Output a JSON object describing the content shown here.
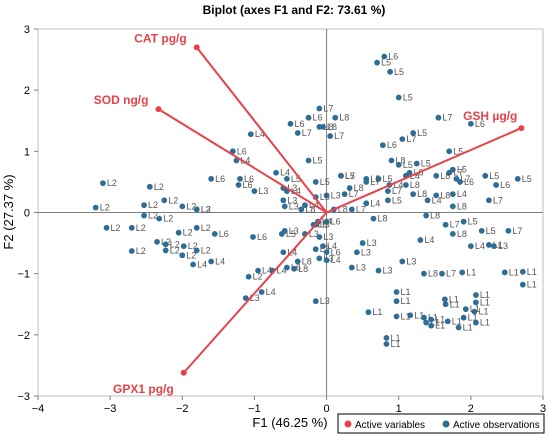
{
  "chart_data": {
    "type": "scatter",
    "title": "Biplot (axes F1 and F2: 73.61 %)",
    "xlabel": "F1 (46.25 %)",
    "ylabel": "F2 (27.37 %)",
    "xlim": [
      -4,
      3
    ],
    "ylim": [
      -3,
      3
    ],
    "xticks": [
      -4,
      -3,
      -2,
      -1,
      0,
      1,
      2,
      3
    ],
    "yticks": [
      -3,
      -2,
      -1,
      0,
      1,
      2,
      3
    ],
    "colors": {
      "variables": "#e8414a",
      "observations": "#2e6e96"
    },
    "legend": {
      "position": "bottom-right",
      "entries": [
        {
          "label": "Active variables",
          "color": "#e8414a"
        },
        {
          "label": "Active observations",
          "color": "#2e6e96"
        }
      ]
    },
    "variables": [
      {
        "name": "CAT pg/g",
        "x": -1.8,
        "y": 2.7
      },
      {
        "name": "SOD ng/g",
        "x": -2.33,
        "y": 1.69
      },
      {
        "name": "GSH µg/g",
        "x": 2.7,
        "y": 1.38
      },
      {
        "name": "GPX1 pg/g",
        "x": -1.98,
        "y": -2.62
      }
    ],
    "observations": [
      {
        "label": "L1",
        "x": 0.97,
        "y": -1.3
      },
      {
        "label": "L1",
        "x": 0.97,
        "y": -1.45
      },
      {
        "label": "L1",
        "x": 0.97,
        "y": -1.7
      },
      {
        "label": "L1",
        "x": 0.83,
        "y": -2.05
      },
      {
        "label": "L1",
        "x": 0.83,
        "y": -2.15
      },
      {
        "label": "L1",
        "x": 0.58,
        "y": -1.63
      },
      {
        "label": "L1",
        "x": 1.16,
        "y": -1.68
      },
      {
        "label": "L1",
        "x": 1.35,
        "y": -1.72
      },
      {
        "label": "L1",
        "x": 1.38,
        "y": -1.8
      },
      {
        "label": "L1",
        "x": 1.45,
        "y": -1.75
      },
      {
        "label": "L1",
        "x": 1.45,
        "y": -1.85
      },
      {
        "label": "L1",
        "x": 1.64,
        "y": -1.42
      },
      {
        "label": "L1",
        "x": 1.68,
        "y": -1.78
      },
      {
        "label": "L1",
        "x": 1.65,
        "y": -1.5
      },
      {
        "label": "L1",
        "x": 1.83,
        "y": -1.88
      },
      {
        "label": "L1",
        "x": 2.07,
        "y": -1.8
      },
      {
        "label": "L1",
        "x": 2.07,
        "y": -1.47
      },
      {
        "label": "L1",
        "x": 2.07,
        "y": -1.35
      },
      {
        "label": "L1",
        "x": 2.05,
        "y": -1.62
      },
      {
        "label": "L1",
        "x": 1.9,
        "y": -1.72
      },
      {
        "label": "L1",
        "x": 1.93,
        "y": -1.58
      },
      {
        "label": "L1",
        "x": 2.72,
        "y": -1.18
      },
      {
        "label": "L1",
        "x": 2.47,
        "y": -0.98
      },
      {
        "label": "L1",
        "x": 2.25,
        "y": -0.53
      },
      {
        "label": "L1",
        "x": 2.72,
        "y": -0.97
      },
      {
        "label": "L1",
        "x": 1.88,
        "y": -0.98
      },
      {
        "label": "L2",
        "x": -3.1,
        "y": 0.48
      },
      {
        "label": "L2",
        "x": -3.2,
        "y": 0.08
      },
      {
        "label": "L2",
        "x": -3.05,
        "y": -0.25
      },
      {
        "label": "L2",
        "x": -2.7,
        "y": -0.25
      },
      {
        "label": "L2",
        "x": -2.45,
        "y": 0.42
      },
      {
        "label": "L2",
        "x": -2.53,
        "y": 0.12
      },
      {
        "label": "L2",
        "x": -2.53,
        "y": -0.05
      },
      {
        "label": "L2",
        "x": -2.32,
        "y": -0.1
      },
      {
        "label": "L2",
        "x": -2.25,
        "y": 0.2
      },
      {
        "label": "L2",
        "x": -2.35,
        "y": -0.48
      },
      {
        "label": "L2",
        "x": -2.23,
        "y": -0.52
      },
      {
        "label": "L2",
        "x": -2.23,
        "y": -0.62
      },
      {
        "label": "L2",
        "x": -2.7,
        "y": -0.63
      },
      {
        "label": "L2",
        "x": -2.0,
        "y": -0.7
      },
      {
        "label": "L2",
        "x": -1.98,
        "y": -0.55
      },
      {
        "label": "L2",
        "x": -1.8,
        "y": -0.62
      },
      {
        "label": "L2",
        "x": -2.05,
        "y": -0.33
      },
      {
        "label": "L2",
        "x": -1.8,
        "y": -0.25
      },
      {
        "label": "L2",
        "x": -1.8,
        "y": 0.05
      },
      {
        "label": "L2",
        "x": -2.0,
        "y": 0.1
      },
      {
        "label": "L2",
        "x": -1.08,
        "y": -1.05
      },
      {
        "label": "L3",
        "x": -1.8,
        "y": 0.05
      },
      {
        "label": "L3",
        "x": -1.12,
        "y": -1.4
      },
      {
        "label": "L3",
        "x": -1.0,
        "y": 0.35
      },
      {
        "label": "L3",
        "x": -0.6,
        "y": 0.4
      },
      {
        "label": "L3",
        "x": -0.6,
        "y": 0.2
      },
      {
        "label": "L3",
        "x": -0.58,
        "y": -0.3
      },
      {
        "label": "L3",
        "x": -0.3,
        "y": -0.35
      },
      {
        "label": "L3",
        "x": -0.15,
        "y": -0.6
      },
      {
        "label": "L3",
        "x": -0.1,
        "y": -0.4
      },
      {
        "label": "L3",
        "x": 0.0,
        "y": 0.28
      },
      {
        "label": "L3",
        "x": 0.35,
        "y": -0.9
      },
      {
        "label": "L3",
        "x": 0.42,
        "y": -0.65
      },
      {
        "label": "L3",
        "x": 0.5,
        "y": -0.5
      },
      {
        "label": "L3",
        "x": 0.72,
        "y": -0.95
      },
      {
        "label": "L3",
        "x": 1.05,
        "y": -0.8
      },
      {
        "label": "L3",
        "x": -0.15,
        "y": -1.45
      },
      {
        "label": "L3",
        "x": -0.1,
        "y": -0.75
      },
      {
        "label": "L3",
        "x": 2.32,
        "y": -0.55
      },
      {
        "label": "L3",
        "x": -0.15,
        "y": -0.2
      },
      {
        "label": "L3",
        "x": -0.58,
        "y": 0.1
      },
      {
        "label": "L4",
        "x": -1.25,
        "y": 0.85
      },
      {
        "label": "L4",
        "x": -1.05,
        "y": 1.28
      },
      {
        "label": "L4",
        "x": -0.7,
        "y": 0.65
      },
      {
        "label": "L4",
        "x": -0.55,
        "y": 0.35
      },
      {
        "label": "L4",
        "x": -0.3,
        "y": 0.12
      },
      {
        "label": "L4",
        "x": -0.12,
        "y": -0.15
      },
      {
        "label": "L4",
        "x": -0.05,
        "y": -0.55
      },
      {
        "label": "L4",
        "x": -0.6,
        "y": -0.65
      },
      {
        "label": "L4",
        "x": -0.75,
        "y": -0.95
      },
      {
        "label": "L4",
        "x": -0.95,
        "y": -0.95
      },
      {
        "label": "L4",
        "x": -0.9,
        "y": -1.3
      },
      {
        "label": "L4",
        "x": -1.6,
        "y": -0.8
      },
      {
        "label": "L4",
        "x": -1.85,
        "y": -0.85
      },
      {
        "label": "L4",
        "x": 0.0,
        "y": -0.78
      },
      {
        "label": "L4",
        "x": 0.55,
        "y": 0.15
      },
      {
        "label": "L4",
        "x": 0.87,
        "y": 0.45
      },
      {
        "label": "L4",
        "x": 1.1,
        "y": 0.6
      },
      {
        "label": "L4",
        "x": 1.3,
        "y": -0.45
      },
      {
        "label": "L4",
        "x": 1.4,
        "y": 0.2
      },
      {
        "label": "L4",
        "x": 1.75,
        "y": 0.3
      },
      {
        "label": "L4",
        "x": 2.0,
        "y": -0.55
      },
      {
        "label": "L5",
        "x": 0.7,
        "y": 2.45
      },
      {
        "label": "L5",
        "x": 0.88,
        "y": 2.3
      },
      {
        "label": "L5",
        "x": 1.0,
        "y": 1.88
      },
      {
        "label": "L5",
        "x": 1.2,
        "y": 1.3
      },
      {
        "label": "L5",
        "x": 1.25,
        "y": 0.8
      },
      {
        "label": "L5",
        "x": 1.7,
        "y": 1.0
      },
      {
        "label": "L5",
        "x": 1.75,
        "y": 0.7
      },
      {
        "label": "L5",
        "x": 2.2,
        "y": 0.6
      },
      {
        "label": "L5",
        "x": 2.65,
        "y": 0.55
      },
      {
        "label": "L5",
        "x": 1.9,
        "y": -0.15
      },
      {
        "label": "L5",
        "x": 2.15,
        "y": -0.3
      },
      {
        "label": "L5",
        "x": 1.0,
        "y": 0.78
      },
      {
        "label": "L5",
        "x": -0.15,
        "y": 0.5
      },
      {
        "label": "L5",
        "x": -0.15,
        "y": 0.25
      },
      {
        "label": "L5",
        "x": 0.2,
        "y": 0.6
      },
      {
        "label": "L5",
        "x": 0.85,
        "y": 0.2
      },
      {
        "label": "L5",
        "x": -0.62,
        "y": -0.35
      },
      {
        "label": "L5",
        "x": 0.55,
        "y": 0.55
      },
      {
        "label": "L5",
        "x": -0.55,
        "y": 0.55
      },
      {
        "label": "L5",
        "x": 0.72,
        "y": 0.55
      },
      {
        "label": "L5",
        "x": -0.25,
        "y": 0.85
      },
      {
        "label": "L6",
        "x": -1.3,
        "y": 1.0
      },
      {
        "label": "L6",
        "x": -1.55,
        "y": -0.35
      },
      {
        "label": "L6",
        "x": -1.6,
        "y": 0.55
      },
      {
        "label": "L6",
        "x": -1.2,
        "y": 0.55
      },
      {
        "label": "L6",
        "x": -1.22,
        "y": 0.45
      },
      {
        "label": "L6",
        "x": -0.5,
        "y": 1.45
      },
      {
        "label": "L6",
        "x": -0.25,
        "y": 1.55
      },
      {
        "label": "L6",
        "x": -0.55,
        "y": -0.9
      },
      {
        "label": "L6",
        "x": 0.0,
        "y": -0.15
      },
      {
        "label": "L6",
        "x": 0.0,
        "y": -0.65
      },
      {
        "label": "L6",
        "x": 0.8,
        "y": 2.55
      },
      {
        "label": "L6",
        "x": 0.78,
        "y": 1.1
      },
      {
        "label": "L6",
        "x": 1.15,
        "y": 0.65
      },
      {
        "label": "L6",
        "x": 2.0,
        "y": 1.45
      },
      {
        "label": "L6",
        "x": 1.85,
        "y": 0.5
      },
      {
        "label": "L6",
        "x": 2.35,
        "y": 0.45
      },
      {
        "label": "L6",
        "x": -1.02,
        "y": -0.4
      },
      {
        "label": "L7",
        "x": -0.1,
        "y": 1.7
      },
      {
        "label": "L7",
        "x": -0.4,
        "y": 1.3
      },
      {
        "label": "L7",
        "x": 0.05,
        "y": 1.25
      },
      {
        "label": "L7",
        "x": 0.2,
        "y": 0.6
      },
      {
        "label": "L7",
        "x": 0.25,
        "y": 0.3
      },
      {
        "label": "L7",
        "x": 0.55,
        "y": 0.5
      },
      {
        "label": "L7",
        "x": 0.85,
        "y": 0.35
      },
      {
        "label": "L7",
        "x": 0.35,
        "y": 0.05
      },
      {
        "label": "L7",
        "x": 1.05,
        "y": 1.2
      },
      {
        "label": "L7",
        "x": 1.55,
        "y": 1.55
      },
      {
        "label": "L7",
        "x": 1.8,
        "y": 0.55
      },
      {
        "label": "L7",
        "x": 1.65,
        "y": -0.2
      },
      {
        "label": "L7",
        "x": 1.6,
        "y": -1.0
      },
      {
        "label": "L7",
        "x": 2.52,
        "y": -0.3
      },
      {
        "label": "L7",
        "x": 1.7,
        "y": 0.65
      },
      {
        "label": "L7",
        "x": 2.25,
        "y": 0.2
      },
      {
        "label": "L8",
        "x": -0.1,
        "y": 1.4
      },
      {
        "label": "L8",
        "x": -0.05,
        "y": 1.4
      },
      {
        "label": "L8",
        "x": 0.12,
        "y": 1.55
      },
      {
        "label": "L8",
        "x": -0.35,
        "y": 0.05
      },
      {
        "label": "L8",
        "x": 0.32,
        "y": 0.4
      },
      {
        "label": "L8",
        "x": -0.18,
        "y": -0.2
      },
      {
        "label": "L8",
        "x": -0.4,
        "y": -0.8
      },
      {
        "label": "L8",
        "x": -0.45,
        "y": -0.92
      },
      {
        "label": "L8",
        "x": 0.1,
        "y": 0.05
      },
      {
        "label": "L8",
        "x": 0.9,
        "y": 0.85
      },
      {
        "label": "L8",
        "x": 1.1,
        "y": 0.45
      },
      {
        "label": "L8",
        "x": 1.2,
        "y": 0.3
      },
      {
        "label": "L8",
        "x": 1.38,
        "y": -0.05
      },
      {
        "label": "L8",
        "x": 1.52,
        "y": 0.28
      },
      {
        "label": "L8",
        "x": 1.75,
        "y": 0.1
      },
      {
        "label": "L8",
        "x": 1.75,
        "y": -0.35
      },
      {
        "label": "L8",
        "x": 1.35,
        "y": -1.0
      },
      {
        "label": "L8",
        "x": 1.52,
        "y": 0.6
      },
      {
        "label": "L8",
        "x": 0.65,
        "y": -0.1
      }
    ]
  }
}
